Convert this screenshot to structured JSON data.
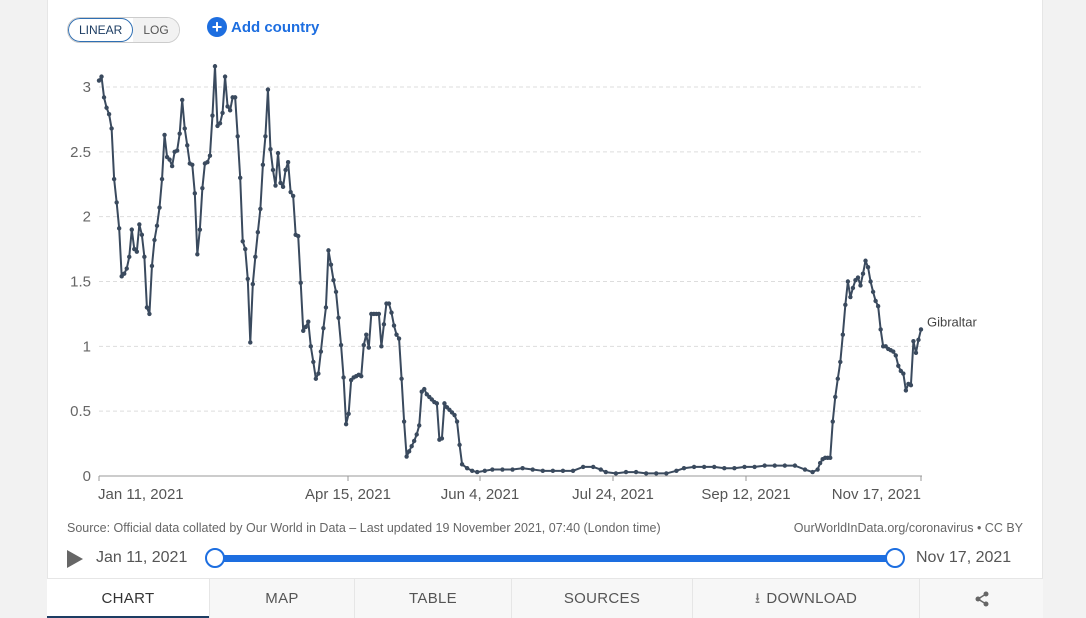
{
  "controls": {
    "linear_label": "LINEAR",
    "log_label": "LOG",
    "add_country_label": "Add country"
  },
  "footer": {
    "source": "Source: Official data collated by Our World in Data – Last updated 19 November 2021, 07:40 (London time)",
    "credit": "OurWorldInData.org/coronavirus • CC BY"
  },
  "timeline": {
    "start_label": "Jan 11, 2021",
    "end_label": "Nov 17, 2021",
    "start_position": 0,
    "end_position": 1
  },
  "tabs": {
    "chart": "CHART",
    "map": "MAP",
    "table": "TABLE",
    "sources": "SOURCES",
    "download": "DOWNLOAD"
  },
  "colors": {
    "series": "#3a4a5e",
    "accent": "#1d6ee0",
    "grid": "#dddddd"
  },
  "chart_data": {
    "type": "line",
    "title": "",
    "xlabel": "",
    "ylabel": "",
    "ylim": [
      0,
      3.2
    ],
    "yticks": [
      0,
      0.5,
      1,
      1.5,
      2,
      2.5,
      3
    ],
    "ytick_labels": [
      "0",
      "0.5",
      "1",
      "1.5",
      "2",
      "2.5",
      "3"
    ],
    "xlim": [
      "2021-01-11",
      "2021-11-17"
    ],
    "xticks": [
      "2021-01-11",
      "2021-04-15",
      "2021-06-04",
      "2021-07-24",
      "2021-09-12",
      "2021-11-17"
    ],
    "xtick_labels": [
      "Jan 11, 2021",
      "Apr 15, 2021",
      "Jun 4, 2021",
      "Jul 24, 2021",
      "Sep 12, 2021",
      "Nov 17, 2021"
    ],
    "grid": true,
    "legend": "end-of-line label",
    "series": [
      {
        "name": "Gibraltar",
        "points": [
          [
            "2021-01-11",
            3.05
          ],
          [
            "2021-01-12",
            3.08
          ],
          [
            "2021-01-13",
            2.92
          ],
          [
            "2021-01-14",
            2.84
          ],
          [
            "2021-01-15",
            2.79
          ],
          [
            "2021-01-16",
            2.68
          ],
          [
            "2021-01-17",
            2.29
          ],
          [
            "2021-01-18",
            2.11
          ],
          [
            "2021-01-19",
            1.91
          ],
          [
            "2021-01-20",
            1.54
          ],
          [
            "2021-01-21",
            1.56
          ],
          [
            "2021-01-22",
            1.6
          ],
          [
            "2021-01-23",
            1.69
          ],
          [
            "2021-01-24",
            1.9
          ],
          [
            "2021-01-25",
            1.75
          ],
          [
            "2021-01-26",
            1.73
          ],
          [
            "2021-01-27",
            1.94
          ],
          [
            "2021-01-28",
            1.86
          ],
          [
            "2021-01-29",
            1.69
          ],
          [
            "2021-01-30",
            1.3
          ],
          [
            "2021-01-31",
            1.25
          ],
          [
            "2021-02-01",
            1.62
          ],
          [
            "2021-02-02",
            1.82
          ],
          [
            "2021-02-03",
            1.93
          ],
          [
            "2021-02-04",
            2.07
          ],
          [
            "2021-02-05",
            2.29
          ],
          [
            "2021-02-06",
            2.63
          ],
          [
            "2021-02-07",
            2.46
          ],
          [
            "2021-02-08",
            2.44
          ],
          [
            "2021-02-09",
            2.39
          ],
          [
            "2021-02-10",
            2.5
          ],
          [
            "2021-02-11",
            2.51
          ],
          [
            "2021-02-12",
            2.64
          ],
          [
            "2021-02-13",
            2.9
          ],
          [
            "2021-02-14",
            2.68
          ],
          [
            "2021-02-15",
            2.55
          ],
          [
            "2021-02-16",
            2.41
          ],
          [
            "2021-02-17",
            2.4
          ],
          [
            "2021-02-18",
            2.18
          ],
          [
            "2021-02-19",
            1.71
          ],
          [
            "2021-02-20",
            1.9
          ],
          [
            "2021-02-21",
            2.22
          ],
          [
            "2021-02-22",
            2.41
          ],
          [
            "2021-02-23",
            2.42
          ],
          [
            "2021-02-24",
            2.47
          ],
          [
            "2021-02-25",
            2.78
          ],
          [
            "2021-02-26",
            3.16
          ],
          [
            "2021-02-27",
            2.7
          ],
          [
            "2021-02-28",
            2.72
          ],
          [
            "2021-03-01",
            2.8
          ],
          [
            "2021-03-02",
            3.08
          ],
          [
            "2021-03-03",
            2.85
          ],
          [
            "2021-03-04",
            2.82
          ],
          [
            "2021-03-05",
            2.92
          ],
          [
            "2021-03-06",
            2.92
          ],
          [
            "2021-03-07",
            2.62
          ],
          [
            "2021-03-08",
            2.3
          ],
          [
            "2021-03-09",
            1.81
          ],
          [
            "2021-03-10",
            1.75
          ],
          [
            "2021-03-11",
            1.52
          ],
          [
            "2021-03-12",
            1.03
          ],
          [
            "2021-03-13",
            1.48
          ],
          [
            "2021-03-14",
            1.69
          ],
          [
            "2021-03-15",
            1.88
          ],
          [
            "2021-03-16",
            2.06
          ],
          [
            "2021-03-17",
            2.4
          ],
          [
            "2021-03-18",
            2.62
          ],
          [
            "2021-03-19",
            2.98
          ],
          [
            "2021-03-20",
            2.52
          ],
          [
            "2021-03-21",
            2.36
          ],
          [
            "2021-03-22",
            2.24
          ],
          [
            "2021-03-23",
            2.49
          ],
          [
            "2021-03-24",
            2.26
          ],
          [
            "2021-03-25",
            2.23
          ],
          [
            "2021-03-26",
            2.36
          ],
          [
            "2021-03-27",
            2.42
          ],
          [
            "2021-03-28",
            2.19
          ],
          [
            "2021-03-29",
            2.16
          ],
          [
            "2021-03-30",
            1.86
          ],
          [
            "2021-03-31",
            1.85
          ],
          [
            "2021-04-01",
            1.49
          ],
          [
            "2021-04-02",
            1.12
          ],
          [
            "2021-04-03",
            1.15
          ],
          [
            "2021-04-04",
            1.19
          ],
          [
            "2021-04-05",
            1.0
          ],
          [
            "2021-04-06",
            0.88
          ],
          [
            "2021-04-07",
            0.75
          ],
          [
            "2021-04-08",
            0.79
          ],
          [
            "2021-04-09",
            0.96
          ],
          [
            "2021-04-10",
            1.14
          ],
          [
            "2021-04-11",
            1.3
          ],
          [
            "2021-04-12",
            1.74
          ],
          [
            "2021-04-13",
            1.63
          ],
          [
            "2021-04-14",
            1.51
          ],
          [
            "2021-04-15",
            1.42
          ],
          [
            "2021-04-16",
            1.22
          ],
          [
            "2021-04-17",
            1.01
          ],
          [
            "2021-04-18",
            0.76
          ],
          [
            "2021-04-19",
            0.4
          ],
          [
            "2021-04-20",
            0.48
          ],
          [
            "2021-04-21",
            0.74
          ],
          [
            "2021-04-22",
            0.76
          ],
          [
            "2021-04-23",
            0.77
          ],
          [
            "2021-04-24",
            0.78
          ],
          [
            "2021-04-25",
            0.77
          ],
          [
            "2021-04-26",
            1.01
          ],
          [
            "2021-04-27",
            1.09
          ],
          [
            "2021-04-28",
            0.99
          ],
          [
            "2021-04-29",
            1.25
          ],
          [
            "2021-04-30",
            1.25
          ],
          [
            "2021-05-01",
            1.25
          ],
          [
            "2021-05-02",
            1.25
          ],
          [
            "2021-05-03",
            1.0
          ],
          [
            "2021-05-04",
            1.17
          ],
          [
            "2021-05-05",
            1.33
          ],
          [
            "2021-05-06",
            1.33
          ],
          [
            "2021-05-07",
            1.26
          ],
          [
            "2021-05-08",
            1.16
          ],
          [
            "2021-05-09",
            1.09
          ],
          [
            "2021-05-10",
            1.06
          ],
          [
            "2021-05-11",
            0.75
          ],
          [
            "2021-05-12",
            0.42
          ],
          [
            "2021-05-13",
            0.15
          ],
          [
            "2021-05-14",
            0.19
          ],
          [
            "2021-05-15",
            0.23
          ],
          [
            "2021-05-16",
            0.27
          ],
          [
            "2021-05-17",
            0.32
          ],
          [
            "2021-05-18",
            0.39
          ],
          [
            "2021-05-19",
            0.65
          ],
          [
            "2021-05-20",
            0.67
          ],
          [
            "2021-05-21",
            0.63
          ],
          [
            "2021-05-22",
            0.61
          ],
          [
            "2021-05-23",
            0.59
          ],
          [
            "2021-05-24",
            0.57
          ],
          [
            "2021-05-25",
            0.56
          ],
          [
            "2021-05-26",
            0.28
          ],
          [
            "2021-05-27",
            0.29
          ],
          [
            "2021-05-28",
            0.56
          ],
          [
            "2021-05-29",
            0.53
          ],
          [
            "2021-05-30",
            0.51
          ],
          [
            "2021-05-31",
            0.49
          ],
          [
            "2021-06-01",
            0.47
          ],
          [
            "2021-06-02",
            0.42
          ],
          [
            "2021-06-03",
            0.24
          ],
          [
            "2021-06-04",
            0.09
          ],
          [
            "2021-06-06",
            0.06
          ],
          [
            "2021-06-08",
            0.04
          ],
          [
            "2021-06-10",
            0.03
          ],
          [
            "2021-06-13",
            0.04
          ],
          [
            "2021-06-16",
            0.05
          ],
          [
            "2021-06-20",
            0.05
          ],
          [
            "2021-06-24",
            0.05
          ],
          [
            "2021-06-28",
            0.06
          ],
          [
            "2021-07-02",
            0.05
          ],
          [
            "2021-07-06",
            0.04
          ],
          [
            "2021-07-10",
            0.04
          ],
          [
            "2021-07-14",
            0.04
          ],
          [
            "2021-07-18",
            0.04
          ],
          [
            "2021-07-22",
            0.07
          ],
          [
            "2021-07-26",
            0.07
          ],
          [
            "2021-07-29",
            0.05
          ],
          [
            "2021-07-31",
            0.03
          ],
          [
            "2021-08-04",
            0.02
          ],
          [
            "2021-08-08",
            0.03
          ],
          [
            "2021-08-12",
            0.03
          ],
          [
            "2021-08-16",
            0.02
          ],
          [
            "2021-08-20",
            0.02
          ],
          [
            "2021-08-24",
            0.02
          ],
          [
            "2021-08-28",
            0.04
          ],
          [
            "2021-08-31",
            0.06
          ],
          [
            "2021-09-04",
            0.07
          ],
          [
            "2021-09-08",
            0.07
          ],
          [
            "2021-09-12",
            0.07
          ],
          [
            "2021-09-16",
            0.06
          ],
          [
            "2021-09-20",
            0.06
          ],
          [
            "2021-09-24",
            0.07
          ],
          [
            "2021-09-28",
            0.07
          ],
          [
            "2021-10-02",
            0.08
          ],
          [
            "2021-10-06",
            0.08
          ],
          [
            "2021-10-10",
            0.08
          ],
          [
            "2021-10-14",
            0.08
          ],
          [
            "2021-10-18",
            0.05
          ],
          [
            "2021-10-21",
            0.03
          ],
          [
            "2021-10-23",
            0.05
          ],
          [
            "2021-10-24",
            0.1
          ],
          [
            "2021-10-25",
            0.13
          ],
          [
            "2021-10-26",
            0.14
          ],
          [
            "2021-10-27",
            0.14
          ],
          [
            "2021-10-28",
            0.14
          ],
          [
            "2021-10-29",
            0.42
          ],
          [
            "2021-10-30",
            0.61
          ],
          [
            "2021-10-31",
            0.75
          ],
          [
            "2021-11-01",
            0.88
          ],
          [
            "2021-11-02",
            1.09
          ],
          [
            "2021-11-03",
            1.32
          ],
          [
            "2021-11-04",
            1.5
          ],
          [
            "2021-11-05",
            1.38
          ],
          [
            "2021-11-06",
            1.45
          ],
          [
            "2021-11-07",
            1.51
          ],
          [
            "2021-11-08",
            1.53
          ],
          [
            "2021-11-09",
            1.47
          ],
          [
            "2021-11-10",
            1.56
          ],
          [
            "2021-11-11",
            1.66
          ],
          [
            "2021-11-12",
            1.61
          ],
          [
            "2021-11-13",
            1.5
          ],
          [
            "2021-11-14",
            1.42
          ],
          [
            "2021-11-15",
            1.35
          ],
          [
            "2021-11-16",
            1.31
          ],
          [
            "2021-11-17",
            1.13
          ],
          [
            "2021-11-18",
            1.0
          ],
          [
            "2021-11-19",
            1.0
          ],
          [
            "2021-11-20",
            0.98
          ],
          [
            "2021-11-21",
            0.97
          ],
          [
            "2021-11-22",
            0.96
          ],
          [
            "2021-11-23",
            0.93
          ],
          [
            "2021-11-24",
            0.85
          ],
          [
            "2021-11-25",
            0.81
          ],
          [
            "2021-11-26",
            0.79
          ],
          [
            "2021-11-27",
            0.66
          ],
          [
            "2021-11-28",
            0.71
          ],
          [
            "2021-11-29",
            0.7
          ],
          [
            "2021-11-30",
            1.04
          ],
          [
            "2021-12-01",
            0.95
          ],
          [
            "2021-12-02",
            1.05
          ],
          [
            "2021-12-03",
            1.13
          ]
        ]
      }
    ]
  }
}
